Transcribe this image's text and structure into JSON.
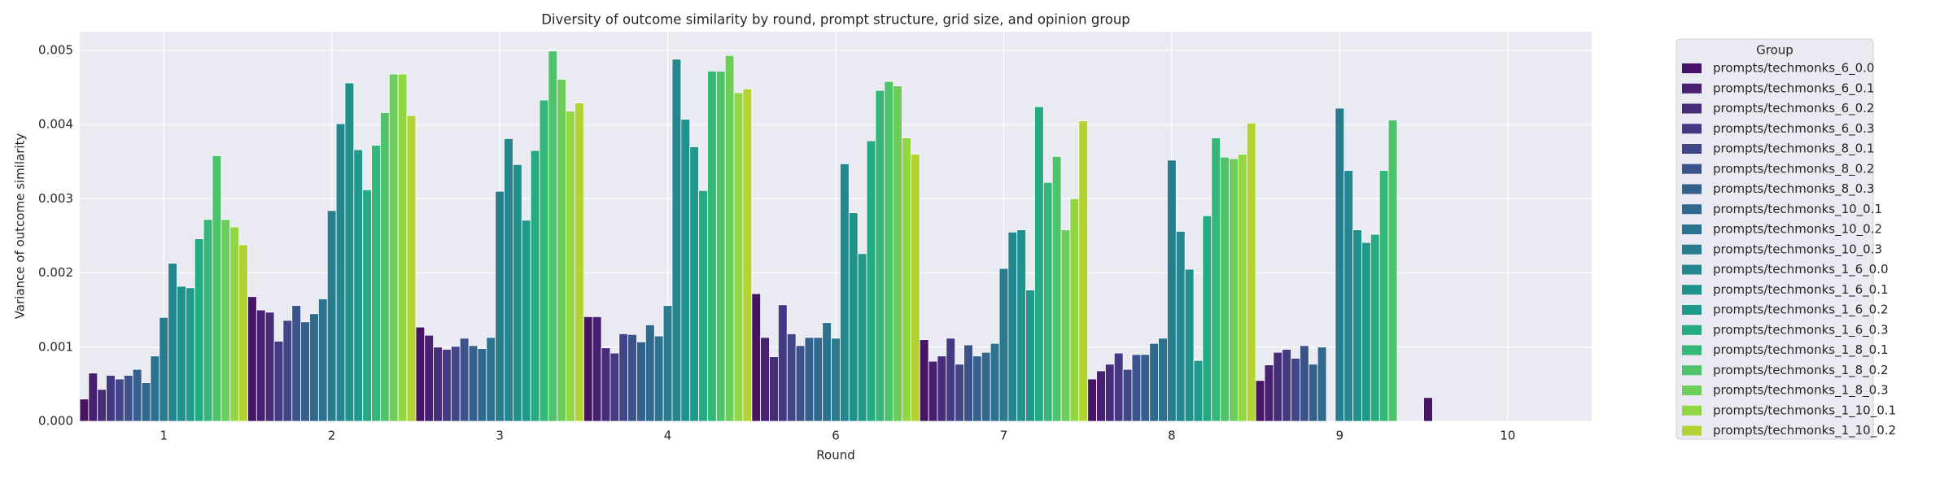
{
  "chart_data": {
    "type": "bar",
    "title": "Diversity of outcome similarity by round, prompt structure, grid size, and opinion group",
    "x_label": "Round",
    "y_label": "Variance of outcome similarity",
    "legend_title": "Group",
    "legend": "outside right",
    "grid": true,
    "categories": [
      "1",
      "2",
      "3",
      "4",
      "6",
      "7",
      "8",
      "9",
      "10"
    ],
    "ylim": [
      0,
      0.00525
    ],
    "yticks": [
      {
        "value": 0,
        "label": "0.000"
      },
      {
        "value": 0.001,
        "label": "0.001"
      },
      {
        "value": 0.002,
        "label": "0.002"
      },
      {
        "value": 0.003,
        "label": "0.003"
      },
      {
        "value": 0.004,
        "label": "0.004"
      },
      {
        "value": 0.005,
        "label": "0.005"
      }
    ],
    "series": [
      {
        "name": "prompts/techmonks_6_0.0",
        "color": "#471365",
        "values": [
          0.0003,
          0.00168,
          0.00127,
          0.00141,
          0.00172,
          0.0011,
          0.00057,
          0.00055,
          0.00032
        ]
      },
      {
        "name": "prompts/techmonks_6_0.1",
        "color": "#482071",
        "values": [
          0.00065,
          0.0015,
          0.00116,
          0.00141,
          0.00113,
          0.00081,
          0.00068,
          0.00076,
          null
        ]
      },
      {
        "name": "prompts/techmonks_6_0.2",
        "color": "#472c7a",
        "values": [
          0.00043,
          0.00147,
          0.001,
          0.00099,
          0.00087,
          0.00088,
          0.00077,
          0.00093,
          null
        ]
      },
      {
        "name": "prompts/techmonks_6_0.3",
        "color": "#443a83",
        "values": [
          0.00062,
          0.00108,
          0.00097,
          0.00092,
          0.00157,
          0.00112,
          0.00092,
          0.00097,
          null
        ]
      },
      {
        "name": "prompts/techmonks_8_0.1",
        "color": "#404688",
        "values": [
          0.00057,
          0.00136,
          0.00101,
          0.00118,
          0.00118,
          0.00077,
          0.0007,
          0.00085,
          null
        ]
      },
      {
        "name": "prompts/techmonks_8_0.2",
        "color": "#3b528b",
        "values": [
          0.00062,
          0.00156,
          0.00112,
          0.00117,
          0.00102,
          0.00103,
          0.0009,
          0.00102,
          null
        ]
      },
      {
        "name": "prompts/techmonks_8_0.3",
        "color": "#355f8d",
        "values": [
          0.0007,
          0.00134,
          0.00102,
          0.00107,
          0.00113,
          0.00088,
          0.0009,
          0.00077,
          null
        ]
      },
      {
        "name": "prompts/techmonks_10_0.1",
        "color": "#30698e",
        "values": [
          0.00052,
          0.00145,
          0.00098,
          0.0013,
          0.00113,
          0.00093,
          0.00105,
          0.001,
          null
        ]
      },
      {
        "name": "prompts/techmonks_10_0.2",
        "color": "#2c728e",
        "values": [
          0.00088,
          0.00165,
          0.00113,
          0.00115,
          0.00133,
          0.00105,
          0.00112,
          null,
          null
        ]
      },
      {
        "name": "prompts/techmonks_10_0.3",
        "color": "#287c8e",
        "values": [
          0.0014,
          0.00284,
          0.0031,
          0.00156,
          0.00112,
          0.00206,
          0.00352,
          0.00422,
          null
        ]
      },
      {
        "name": "prompts/techmonks_1_6_0.0",
        "color": "#24868e",
        "values": [
          0.00213,
          0.00401,
          0.00381,
          0.00488,
          0.00347,
          0.00255,
          0.00256,
          0.00338,
          null
        ]
      },
      {
        "name": "prompts/techmonks_1_6_0.1",
        "color": "#21918c",
        "values": [
          0.00182,
          0.00456,
          0.00346,
          0.00407,
          0.00281,
          0.00258,
          0.00205,
          0.00258,
          null
        ]
      },
      {
        "name": "prompts/techmonks_1_6_0.2",
        "color": "#1f9a8a",
        "values": [
          0.0018,
          0.00366,
          0.00271,
          0.0037,
          0.00226,
          0.00177,
          0.00082,
          0.00241,
          null
        ]
      },
      {
        "name": "prompts/techmonks_1_6_0.3",
        "color": "#25ab82",
        "values": [
          0.00246,
          0.00312,
          0.00365,
          0.00311,
          0.00378,
          0.00424,
          0.00277,
          0.00252,
          null
        ]
      },
      {
        "name": "prompts/techmonks_1_8_0.1",
        "color": "#35b779",
        "values": [
          0.00272,
          0.00372,
          0.00433,
          0.00472,
          0.00446,
          0.00322,
          0.00382,
          0.00338,
          null
        ]
      },
      {
        "name": "prompts/techmonks_1_8_0.2",
        "color": "#4ec36b",
        "values": [
          0.00358,
          0.00416,
          0.00499,
          0.00472,
          0.00458,
          0.00357,
          0.00356,
          0.00406,
          null
        ]
      },
      {
        "name": "prompts/techmonks_1_8_0.3",
        "color": "#6ccd5a",
        "values": [
          0.00272,
          0.00468,
          0.00461,
          0.00493,
          0.00452,
          0.00258,
          0.00354,
          null,
          null
        ]
      },
      {
        "name": "prompts/techmonks_1_10_0.1",
        "color": "#90d743",
        "values": [
          0.00262,
          0.00468,
          0.00418,
          0.00443,
          0.00382,
          0.003,
          0.0036,
          null,
          null
        ]
      },
      {
        "name": "prompts/techmonks_1_10_0.2",
        "color": "#b3d334",
        "values": [
          0.00238,
          0.00412,
          0.00429,
          0.00448,
          0.0036,
          0.00405,
          0.00402,
          null,
          null
        ]
      }
    ]
  }
}
